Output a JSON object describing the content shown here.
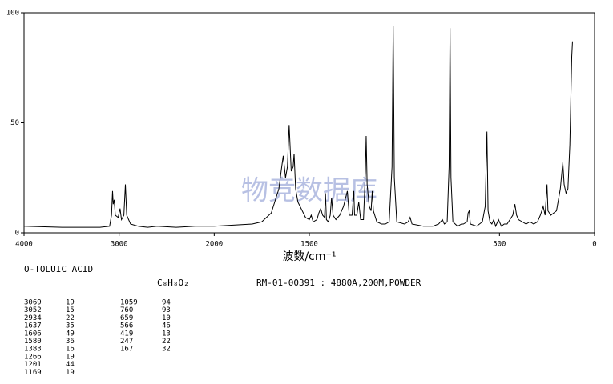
{
  "chart_data": {
    "type": "line",
    "x_label": "波数/cm⁻¹",
    "watermark": "物竞数据库",
    "xlim": [
      4000,
      100
    ],
    "x_scale_break": 2000,
    "xticks": [
      4000,
      3000,
      2000,
      1500,
      500,
      0
    ],
    "ylim": [
      0,
      100
    ],
    "yticks": [
      0,
      50,
      100
    ],
    "color": "#000000",
    "x": [
      4000,
      3600,
      3200,
      3100,
      3080,
      3069,
      3062,
      3052,
      3040,
      3010,
      2990,
      2975,
      2950,
      2934,
      2920,
      2880,
      2800,
      2700,
      2600,
      2400,
      2200,
      2000,
      1900,
      1800,
      1750,
      1700,
      1660,
      1645,
      1637,
      1625,
      1615,
      1606,
      1595,
      1585,
      1580,
      1572,
      1560,
      1520,
      1500,
      1490,
      1480,
      1460,
      1450,
      1440,
      1430,
      1420,
      1415,
      1410,
      1400,
      1390,
      1383,
      1375,
      1360,
      1340,
      1320,
      1300,
      1290,
      1275,
      1266,
      1262,
      1250,
      1240,
      1230,
      1215,
      1205,
      1201,
      1196,
      1185,
      1175,
      1169,
      1163,
      1145,
      1120,
      1100,
      1080,
      1065,
      1059,
      1053,
      1040,
      1000,
      980,
      970,
      960,
      900,
      850,
      820,
      800,
      790,
      775,
      765,
      760,
      755,
      745,
      720,
      700,
      690,
      670,
      665,
      659,
      653,
      620,
      590,
      575,
      566,
      560,
      550,
      540,
      530,
      520,
      505,
      500,
      490,
      475,
      460,
      445,
      430,
      419,
      410,
      400,
      380,
      360,
      340,
      320,
      300,
      285,
      270,
      260,
      250,
      245,
      230,
      200,
      180,
      167,
      160,
      150,
      140,
      130,
      120,
      116
    ],
    "values": [
      3,
      2.5,
      2.5,
      3,
      8,
      19,
      13,
      15,
      8,
      7,
      11,
      6,
      8,
      22,
      8,
      4,
      3,
      2.5,
      3,
      2.5,
      3,
      3,
      3.5,
      4,
      5,
      9,
      20,
      30,
      35,
      25,
      30,
      49,
      28,
      30,
      36,
      20,
      14,
      7,
      6,
      8,
      5,
      6,
      9,
      11,
      8,
      7,
      18,
      6,
      5,
      8,
      16,
      8,
      6,
      8,
      12,
      19,
      8,
      8,
      19,
      8,
      8,
      14,
      6,
      6,
      28,
      44,
      22,
      12,
      10,
      19,
      10,
      5,
      4,
      4,
      5,
      30,
      94,
      25,
      5,
      4,
      5,
      7,
      4,
      3,
      3,
      4,
      6,
      4,
      5,
      30,
      93,
      25,
      5,
      3,
      4,
      4,
      5,
      9,
      10,
      4,
      3,
      5,
      12,
      46,
      10,
      5,
      4,
      6,
      3,
      6,
      5,
      3,
      4,
      4,
      6,
      8,
      13,
      8,
      6,
      5,
      4,
      5,
      4,
      5,
      8,
      12,
      8,
      22,
      10,
      8,
      10,
      20,
      32,
      22,
      18,
      20,
      40,
      80,
      87
    ]
  },
  "info": {
    "name": "O-TOLUIC ACID",
    "formula": "C₈H₈O₂",
    "reference": "RM-01-00391 : 4880A,200M,POWDER",
    "peaks": [
      [
        3069,
        19
      ],
      [
        3052,
        15
      ],
      [
        2934,
        22
      ],
      [
        1637,
        35
      ],
      [
        1606,
        49
      ],
      [
        1580,
        36
      ],
      [
        1383,
        16
      ],
      [
        1266,
        19
      ],
      [
        1201,
        44
      ],
      [
        1169,
        19
      ],
      [
        1059,
        94
      ],
      [
        760,
        93
      ],
      [
        659,
        10
      ],
      [
        566,
        46
      ],
      [
        419,
        13
      ],
      [
        247,
        22
      ],
      [
        167,
        32
      ]
    ]
  }
}
